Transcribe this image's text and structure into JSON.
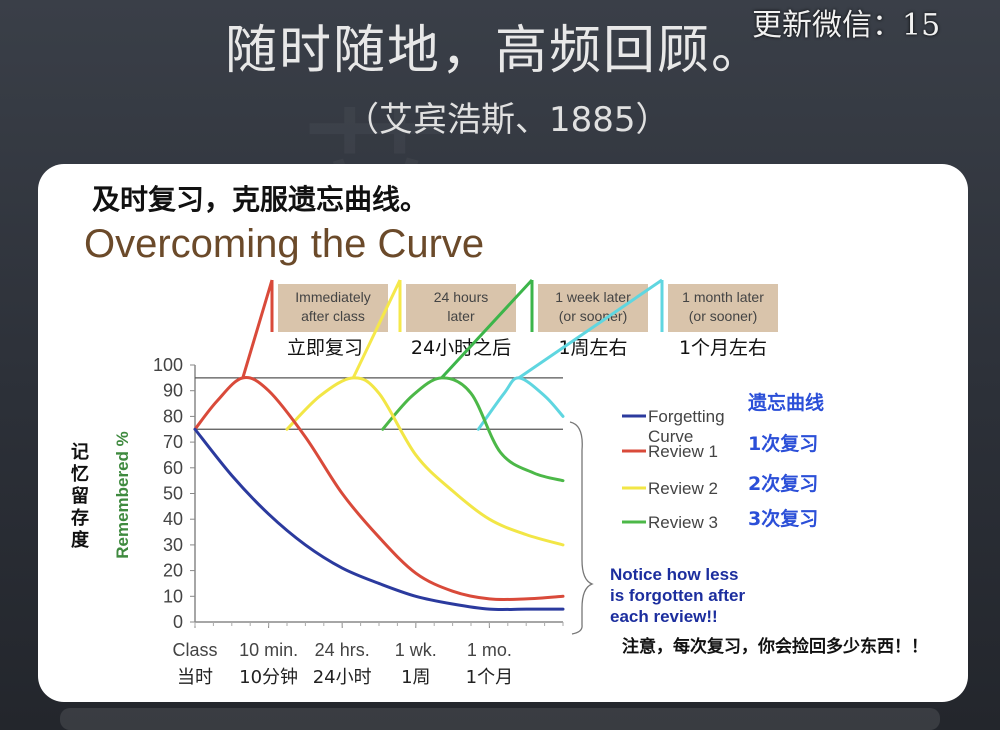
{
  "header": {
    "title": "随时随地，高频回顾。",
    "subtitle": "（艾宾浩斯、1885）",
    "watermark": "更新微信：15"
  },
  "card": {
    "heading": "及时复习，克服遗忘曲线。"
  },
  "chart_data": {
    "type": "line",
    "title": "Overcoming the Curve",
    "ylabel": "Remembered %",
    "ylabel_cn": "记忆留存度",
    "ylim": [
      0,
      100
    ],
    "yticks": [
      0,
      10,
      20,
      30,
      40,
      50,
      60,
      70,
      80,
      90,
      100
    ],
    "x_ticks": [
      {
        "x": 0,
        "label": "Class",
        "label_cn": "当时"
      },
      {
        "x": 1,
        "label": "10 min.",
        "label_cn": "10分钟"
      },
      {
        "x": 2,
        "label": "24 hrs.",
        "label_cn": "24小时"
      },
      {
        "x": 3,
        "label": "1 wk.",
        "label_cn": "1周"
      },
      {
        "x": 4,
        "label": "1 mo.",
        "label_cn": "1个月"
      }
    ],
    "reference_lines": [
      95,
      75
    ],
    "review_boxes": [
      {
        "text": [
          "Immediately",
          "after class"
        ],
        "caption": "立即复习",
        "color": "#d94a3a"
      },
      {
        "text": [
          "24 hours",
          "later"
        ],
        "caption": "24小时之后",
        "color": "#f5e84a"
      },
      {
        "text": [
          "1 week later",
          "(or sooner)"
        ],
        "caption": "1周左右",
        "color": "#3cb54a"
      },
      {
        "text": [
          "1 month later",
          "(or sooner)"
        ],
        "caption": "1个月左右",
        "color": "#5fd6e0"
      }
    ],
    "series": [
      {
        "name": "Forgetting Curve",
        "name_cn": "遗忘曲线",
        "color": "#2b3a9e",
        "points": [
          [
            0,
            75
          ],
          [
            0.5,
            57
          ],
          [
            1,
            42
          ],
          [
            1.5,
            30
          ],
          [
            2,
            21
          ],
          [
            2.5,
            15
          ],
          [
            3,
            10
          ],
          [
            3.5,
            7
          ],
          [
            4,
            5
          ],
          [
            4.5,
            5
          ],
          [
            5,
            5
          ]
        ]
      },
      {
        "name": "Review 1",
        "name_cn": "1次复习",
        "color": "#d94a3a",
        "points": [
          [
            0,
            75
          ],
          [
            0.3,
            86
          ],
          [
            0.65,
            95
          ],
          [
            1,
            90
          ],
          [
            1.5,
            72
          ],
          [
            2,
            50
          ],
          [
            2.5,
            33
          ],
          [
            3,
            19
          ],
          [
            3.5,
            12
          ],
          [
            4,
            9
          ],
          [
            4.5,
            9
          ],
          [
            5,
            10
          ]
        ]
      },
      {
        "name": "Review 2",
        "name_cn": "2次复习",
        "color": "#f2e646",
        "points": [
          [
            1.25,
            75
          ],
          [
            1.7,
            88
          ],
          [
            2.15,
            95
          ],
          [
            2.5,
            89
          ],
          [
            3,
            65
          ],
          [
            3.5,
            51
          ],
          [
            4,
            40
          ],
          [
            4.5,
            34
          ],
          [
            5,
            30
          ]
        ]
      },
      {
        "name": "Review 3",
        "name_cn": "3次复习",
        "color": "#4cb848",
        "points": [
          [
            2.55,
            75
          ],
          [
            2.95,
            88
          ],
          [
            3.35,
            95
          ],
          [
            3.75,
            89
          ],
          [
            4.15,
            66
          ],
          [
            4.6,
            58
          ],
          [
            5,
            55
          ]
        ]
      },
      {
        "name": "",
        "color": "#5fd6e0",
        "points": [
          [
            3.85,
            75
          ],
          [
            4.2,
            89
          ],
          [
            4.4,
            95
          ],
          [
            4.75,
            88
          ],
          [
            5,
            80
          ]
        ]
      }
    ],
    "notice": [
      "Notice how less",
      "is forgotten after",
      "each review!!"
    ],
    "note_cn": "注意，每次复习，你会捡回多少东西！！"
  }
}
